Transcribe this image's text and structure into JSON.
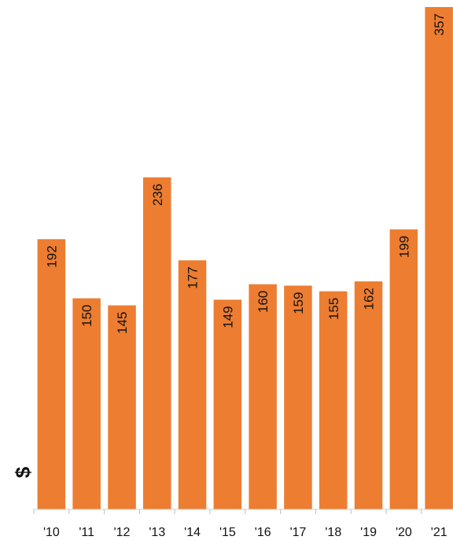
{
  "chart_data": {
    "type": "bar",
    "title": "",
    "xlabel": "",
    "ylabel": "$",
    "categories": [
      "'10",
      "'11",
      "'12",
      "'13",
      "'14",
      "'15",
      "'16",
      "'17",
      "'18",
      "'19",
      "'20",
      "'21"
    ],
    "values": [
      192,
      150,
      145,
      236,
      177,
      149,
      160,
      159,
      155,
      162,
      199,
      357
    ],
    "ylim": [
      0,
      357
    ],
    "grid": false,
    "legend": "none",
    "bar_color": "#ED7D31",
    "data_label_orientation": "vertical"
  }
}
